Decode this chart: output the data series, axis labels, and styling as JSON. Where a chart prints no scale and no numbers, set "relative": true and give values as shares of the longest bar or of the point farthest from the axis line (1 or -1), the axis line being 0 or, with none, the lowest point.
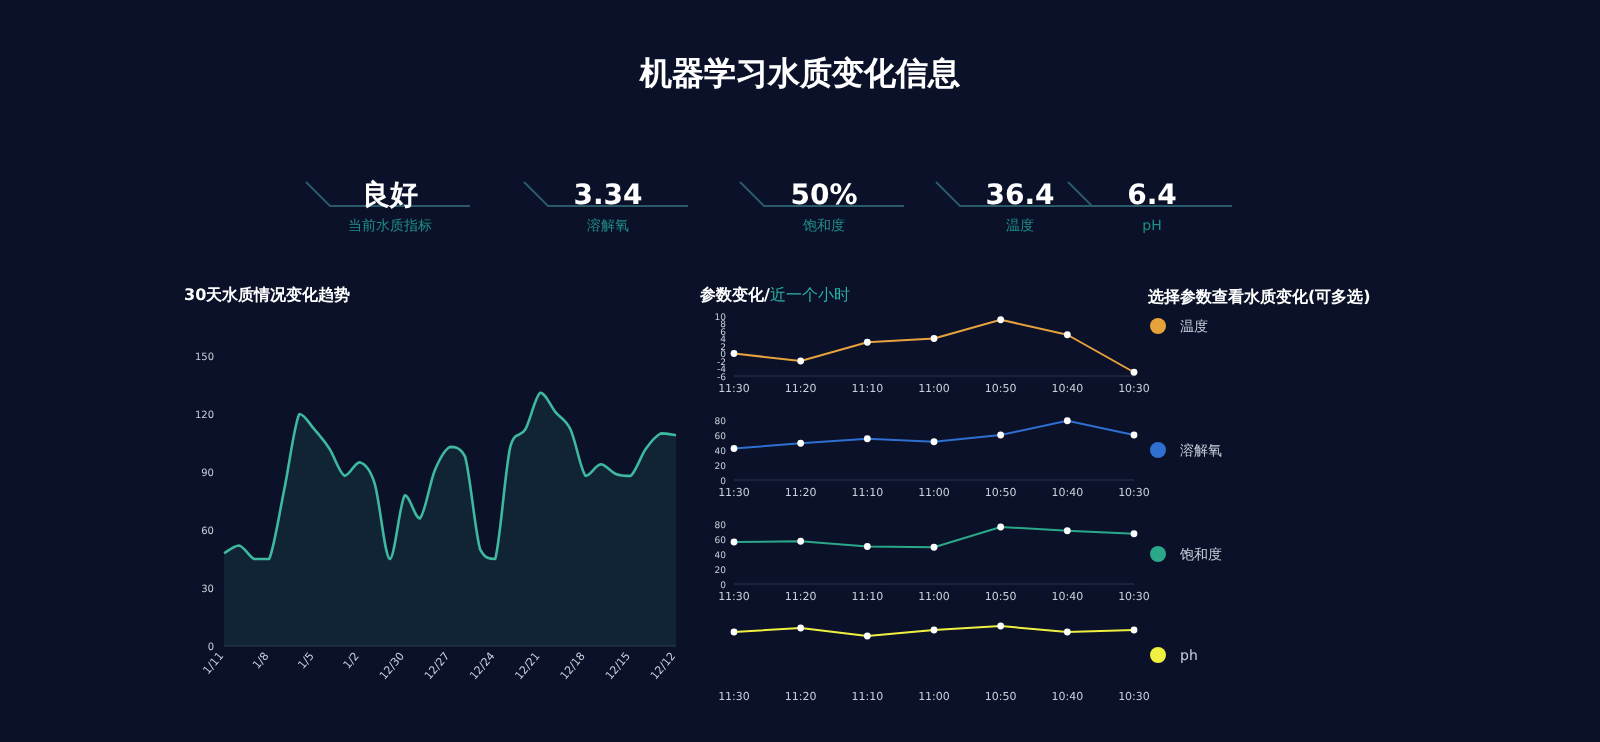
{
  "chart_data": [
    {
      "type": "other",
      "title": "机器学习水质变化信息",
      "categories": [
        "当前水质指标",
        "溶解氧",
        "饱和度",
        "温度",
        "pH"
      ],
      "value_labels": [
        "良好",
        "3.34",
        "50%",
        "36.4",
        "6.4"
      ]
    },
    {
      "type": "area",
      "title": "30天水质情况变化趋势",
      "categories": [
        "1/11",
        null,
        null,
        "1/8",
        null,
        null,
        "1/5",
        null,
        null,
        "1/2",
        null,
        null,
        "12/30",
        null,
        null,
        "12/27",
        null,
        null,
        "12/24",
        null,
        null,
        "12/21",
        null,
        null,
        "12/18",
        null,
        null,
        "12/15",
        null,
        null,
        "12/12"
      ],
      "series": [
        {
          "color": "#3fb8a0",
          "values": [
            48,
            52,
            45,
            45,
            81,
            120,
            112,
            102,
            88,
            95,
            84,
            45,
            78,
            66,
            91,
            103,
            98,
            50,
            45,
            103,
            112,
            131,
            121,
            112,
            88,
            94,
            89,
            88,
            102,
            110,
            109
          ]
        }
      ],
      "ylim": [
        0,
        150
      ],
      "yticks": [
        0,
        30,
        60,
        90,
        120,
        150
      ],
      "legend": false
    },
    {
      "type": "line",
      "title": "参数变化/",
      "subtitle": "近一个小时",
      "legend_title": "选择参数查看水质变化(可多选)",
      "categories": [
        "11:30",
        "11:20",
        "11:10",
        "11:00",
        "10:50",
        "10:40",
        "10:30"
      ],
      "series": [
        {
          "name": "温度",
          "color": "#e8a23c",
          "values": [
            0,
            -2,
            3,
            4,
            9,
            5,
            -5
          ]
        }
      ],
      "ylim": [
        -6,
        10
      ],
      "yticks": [
        -6,
        -4,
        -2,
        0,
        2,
        4,
        6,
        8,
        10
      ],
      "marker": "circle",
      "legend": "right"
    },
    {
      "type": "line",
      "categories": [
        "11:30",
        "11:20",
        "11:10",
        "11:00",
        "10:50",
        "10:40",
        "10:30"
      ],
      "series": [
        {
          "name": "溶解氧",
          "color": "#2f6fd0",
          "values": [
            42,
            49,
            55,
            51,
            60,
            79,
            60
          ]
        }
      ],
      "ylim": [
        0,
        80
      ],
      "yticks": [
        0,
        20,
        40,
        60,
        80
      ],
      "marker": "circle",
      "legend": "right"
    },
    {
      "type": "line",
      "categories": [
        "11:30",
        "11:20",
        "11:10",
        "11:00",
        "10:50",
        "10:40",
        "10:30"
      ],
      "series": [
        {
          "name": "饱和度",
          "color": "#2aa889",
          "values": [
            56,
            57,
            50,
            49,
            76,
            71,
            67
          ]
        }
      ],
      "ylim": [
        0,
        80
      ],
      "yticks": [
        0,
        20,
        40,
        60,
        80
      ],
      "marker": "circle",
      "legend": "right"
    },
    {
      "type": "line",
      "relative": true,
      "categories": [
        "11:30",
        "11:20",
        "11:10",
        "11:00",
        "10:50",
        "10:40",
        "10:30"
      ],
      "series": [
        {
          "name": "ph",
          "color": "#f0f040",
          "values": [
            0.4,
            0.8,
            0,
            0.6,
            1,
            0.4,
            0.6
          ]
        }
      ],
      "marker": "circle",
      "legend": "right"
    }
  ]
}
